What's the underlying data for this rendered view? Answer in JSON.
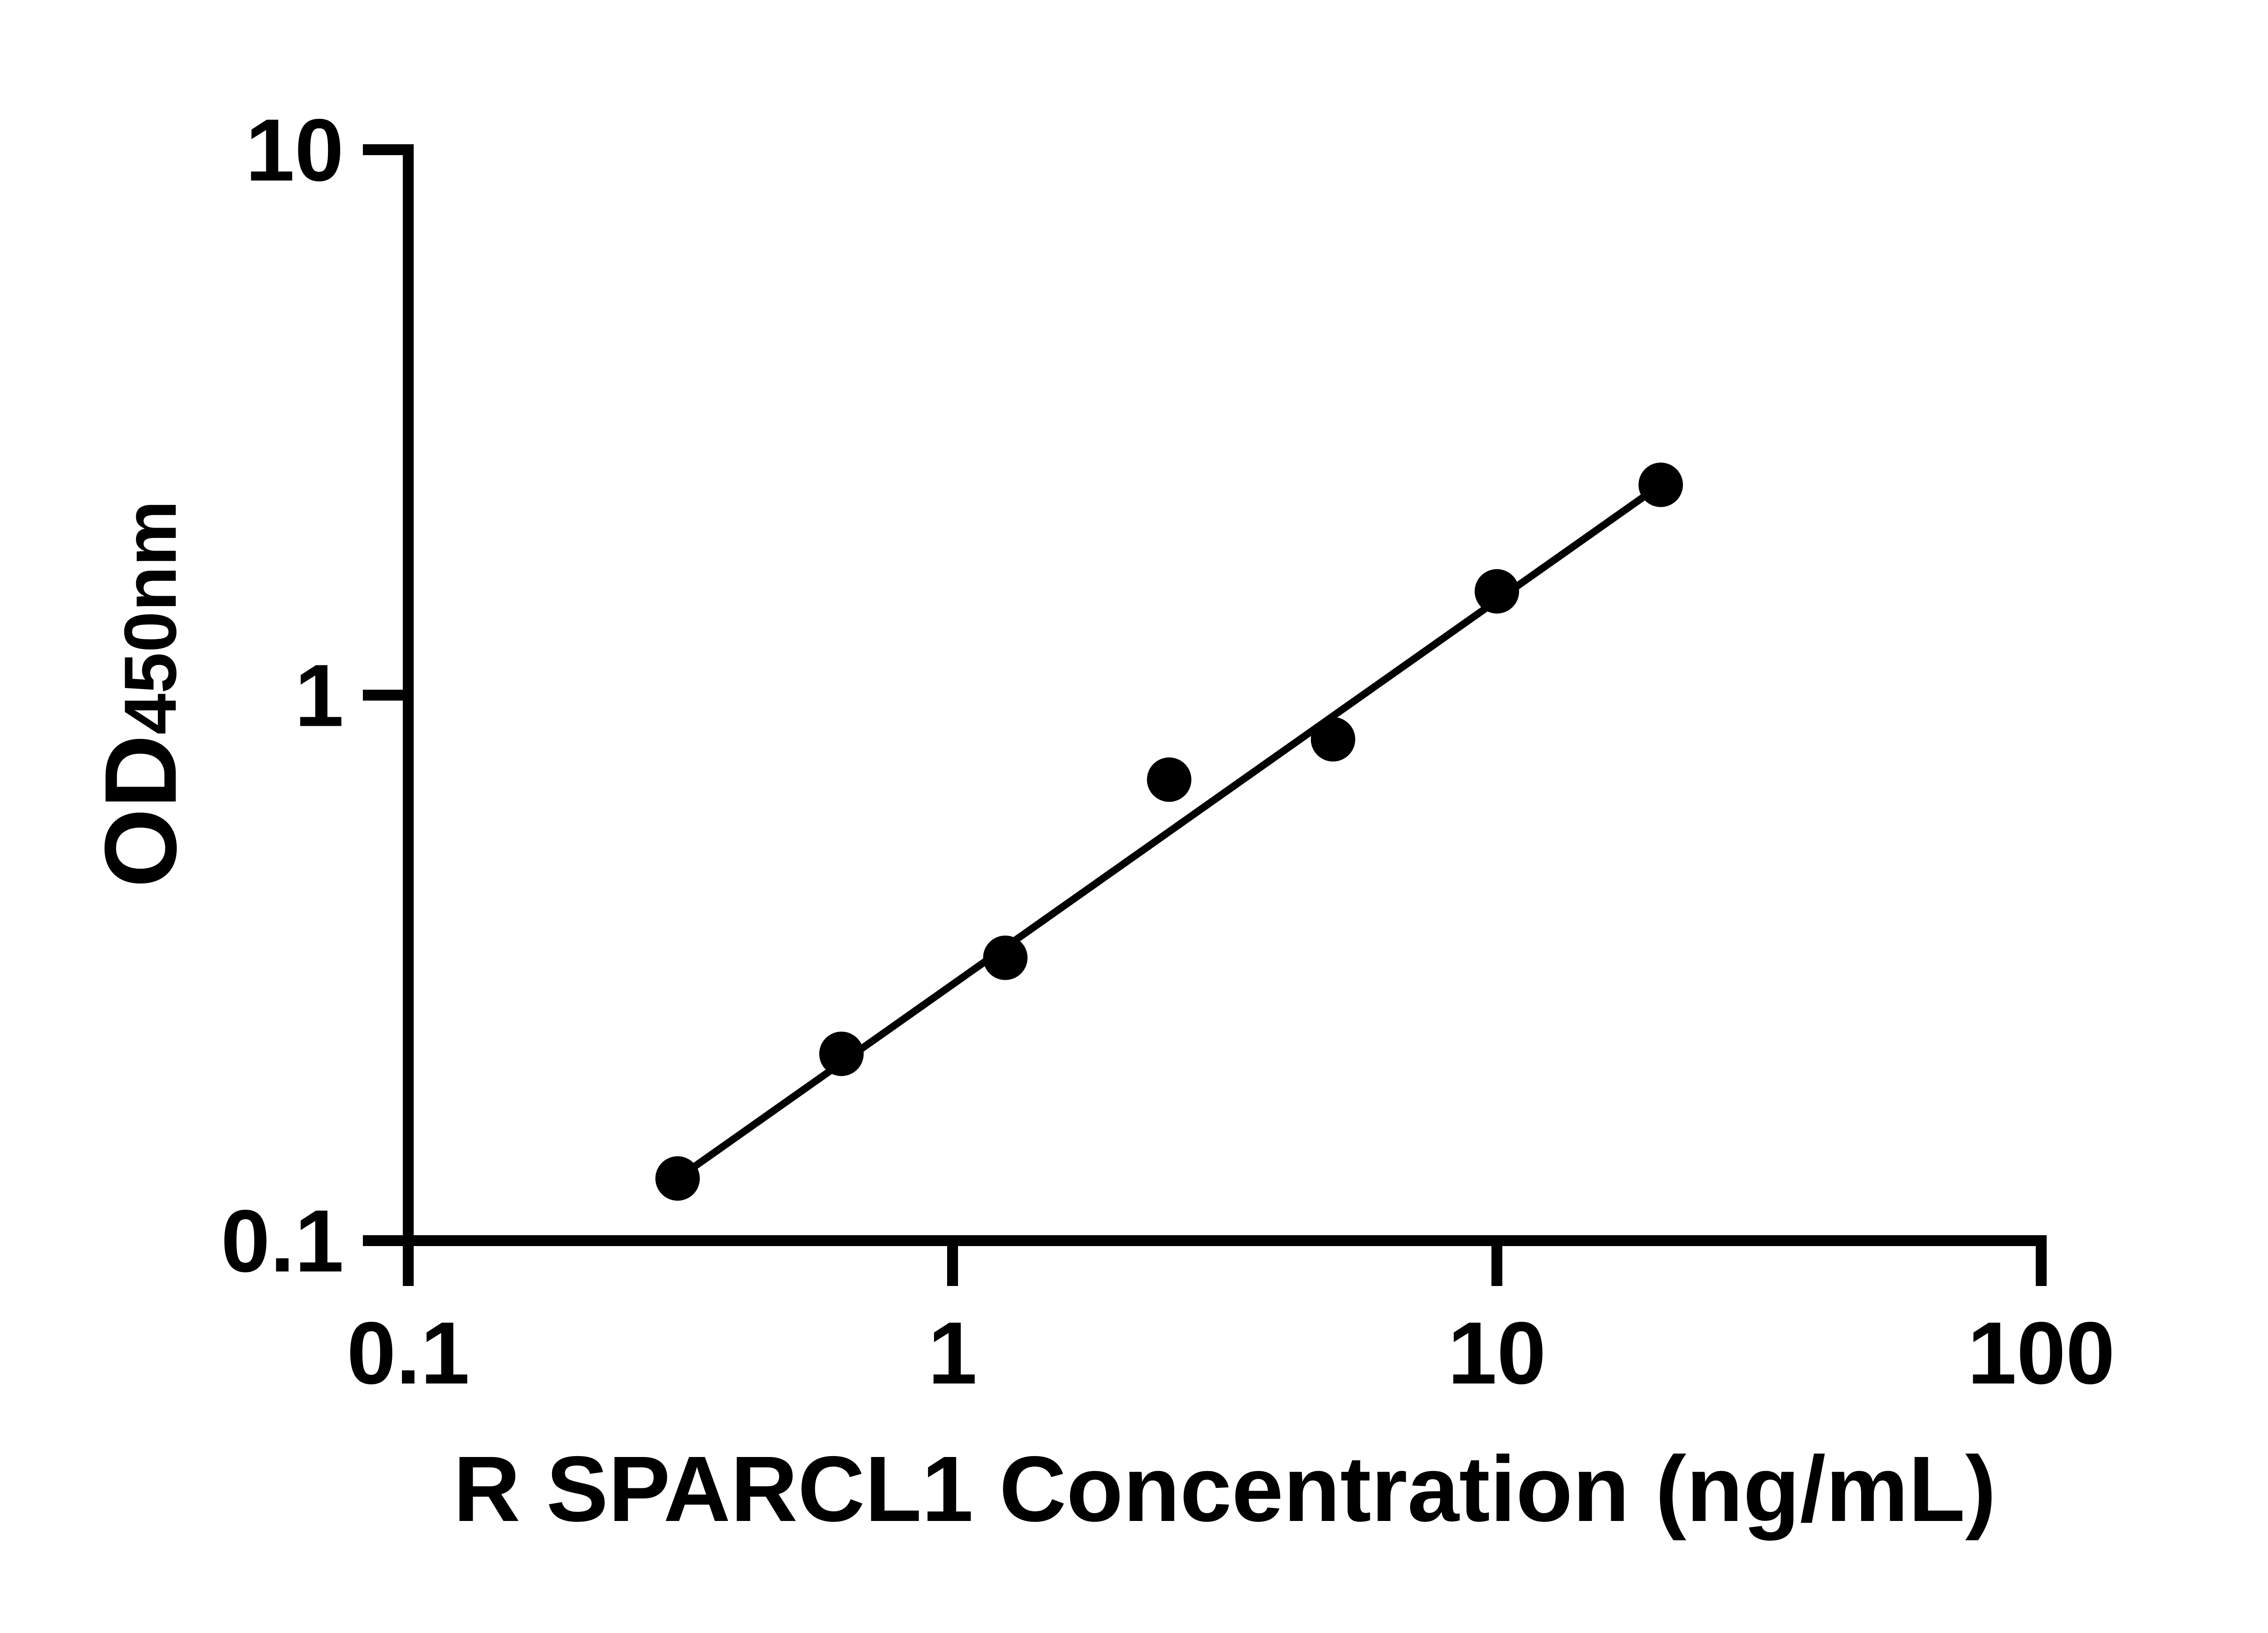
{
  "chart_data": {
    "type": "scatter",
    "title": "",
    "xlabel": "R SPARCL1 Concentration (ng/mL)",
    "ylabel_main": "OD",
    "ylabel_sub": "450nm",
    "x_scale": "log",
    "y_scale": "log",
    "xlim": [
      0.1,
      100
    ],
    "ylim": [
      0.1,
      10
    ],
    "x_tick_values": [
      0.1,
      1,
      10,
      100
    ],
    "x_tick_labels": [
      "0.1",
      "1",
      "10",
      "100"
    ],
    "y_tick_values": [
      0.1,
      1,
      10
    ],
    "y_tick_labels": [
      "0.1",
      "1",
      "10"
    ],
    "grid": false,
    "legend": false,
    "background_color": "#ffffff",
    "axis_color": "#000000",
    "marker_color": "#000000",
    "line_color": "#000000",
    "series": [
      {
        "name": "standard-points",
        "type": "scatter",
        "marker": "filled-circle",
        "x": [
          0.3125,
          0.625,
          1.25,
          2.5,
          5,
          10,
          20
        ],
        "y": [
          0.13,
          0.22,
          0.33,
          0.7,
          0.83,
          1.55,
          2.43
        ]
      },
      {
        "name": "fit-line",
        "type": "line",
        "x": [
          0.3125,
          20
        ],
        "y": [
          0.13,
          2.43
        ]
      }
    ]
  }
}
